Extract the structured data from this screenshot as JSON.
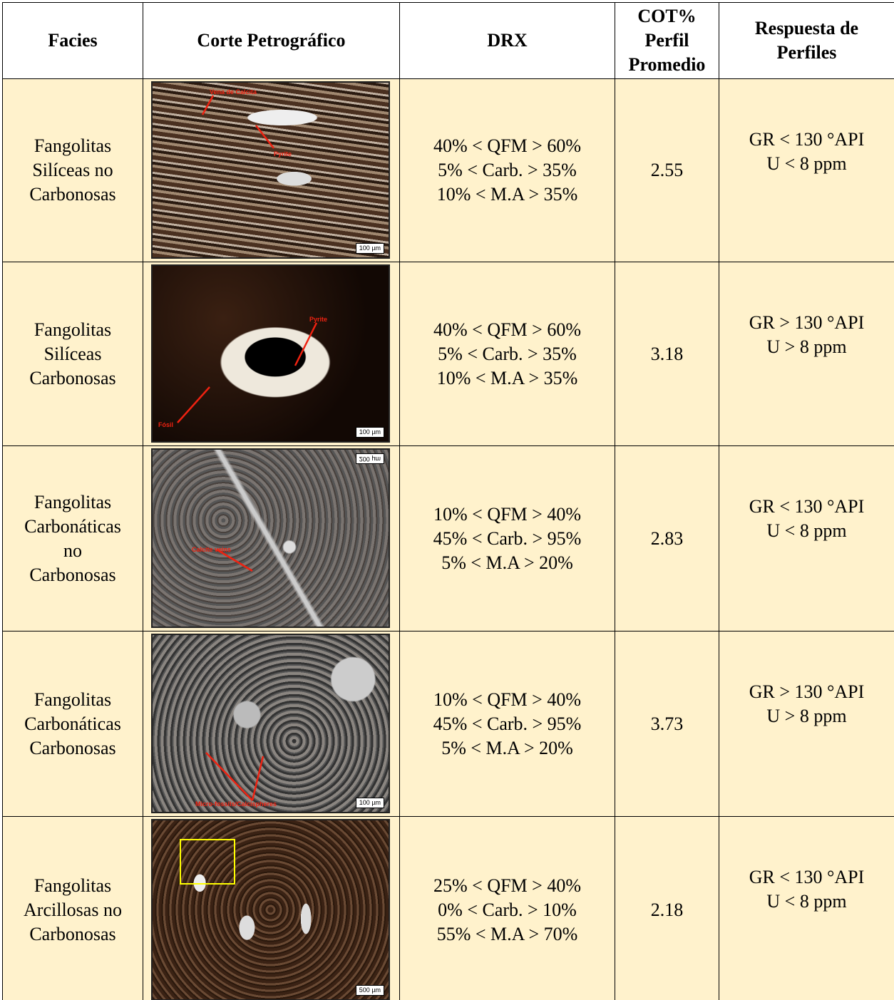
{
  "table": {
    "header": [
      [
        "Facies"
      ],
      [
        "Corte Petrográfico"
      ],
      [
        "DRX"
      ],
      [
        "COT%",
        "Perfil",
        "Promedio"
      ],
      [
        "Respuesta de",
        "Perfiles"
      ]
    ],
    "rows": [
      {
        "facies": [
          "Fangolitas",
          "Silíceas no",
          "Carbonosas"
        ],
        "image": {
          "scale": "100 µm",
          "labels": [
            "Vena de Calcita",
            "Pyrite"
          ]
        },
        "drx": [
          "40% < QFM > 60%",
          "5% < Carb. > 35%",
          "10% < M.A > 35%"
        ],
        "cot": 2.55,
        "logs": [
          "GR < 130 °API",
          "U < 8 ppm"
        ]
      },
      {
        "facies": [
          "Fangolitas",
          "Silíceas",
          "Carbonosas"
        ],
        "image": {
          "scale": "100 µm",
          "labels": [
            "Pyrite",
            "Fósil"
          ]
        },
        "drx": [
          "40% < QFM > 60%",
          "5% < Carb. > 35%",
          "10% < M.A > 35%"
        ],
        "cot": 3.18,
        "logs": [
          "GR > 130 °API",
          "U > 8 ppm"
        ]
      },
      {
        "facies": [
          "Fangolitas",
          "Carbonáticas",
          "no",
          "Carbonosas"
        ],
        "image": {
          "scale": "200 µm",
          "labels": [
            "Calcite veins"
          ]
        },
        "drx": [
          "10% < QFM > 40%",
          "45% < Carb. > 95%",
          "5% < M.A > 20%"
        ],
        "cot": 2.83,
        "logs": [
          "GR < 130 °API",
          "U < 8 ppm"
        ]
      },
      {
        "facies": [
          "Fangolitas",
          "Carbonáticas",
          "Carbonosas"
        ],
        "image": {
          "scale": "100 µm",
          "labels": [
            "Micro-fossils/Calcispheres"
          ]
        },
        "drx": [
          "10% < QFM > 40%",
          "45% < Carb. > 95%",
          "5% < M.A > 20%"
        ],
        "cot": 3.73,
        "logs": [
          "GR > 130 °API",
          "U > 8 ppm"
        ]
      },
      {
        "facies": [
          "Fangolitas",
          "Arcillosas no",
          "Carbonosas"
        ],
        "image": {
          "scale": "500 µm",
          "labels": []
        },
        "drx": [
          "25% < QFM > 40%",
          "0% < Carb. > 10%",
          "55% < M.A > 70%"
        ],
        "cot": 2.18,
        "logs": [
          "GR < 130 °API",
          "U < 8 ppm"
        ]
      }
    ]
  }
}
